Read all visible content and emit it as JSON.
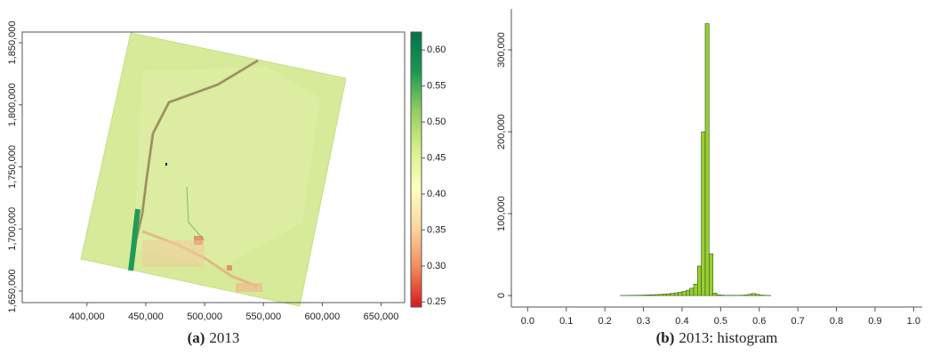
{
  "chart_data": [
    {
      "type": "raster",
      "caption_label": "(a)",
      "caption": "2013",
      "xlim": [
        345000,
        670000
      ],
      "xticks": [
        {
          "value": 400000,
          "label": "400,000"
        },
        {
          "value": 450000,
          "label": "450,000"
        },
        {
          "value": 500000,
          "label": "500,000"
        },
        {
          "value": 550000,
          "label": "550,000"
        },
        {
          "value": 600000,
          "label": "600,000"
        },
        {
          "value": 650000,
          "label": "650,000"
        }
      ],
      "ylim": [
        1640700,
        1858600
      ],
      "yticks": [
        {
          "value": 1650000,
          "label": "1,650,000"
        },
        {
          "value": 1700000,
          "label": "1,700,000"
        },
        {
          "value": 1750000,
          "label": "1,750,000"
        },
        {
          "value": 1800000,
          "label": "1,800,000"
        },
        {
          "value": 1850000,
          "label": "1,850,000"
        }
      ],
      "colorbar_lim": [
        0.243,
        0.625
      ],
      "colorbar_ticks": [
        0.25,
        {
          "value": 0.3,
          "label": "0.30"
        },
        0.35,
        {
          "value": 0.4,
          "label": "0.40"
        },
        0.45,
        {
          "value": 0.5,
          "label": "0.50"
        },
        0.55,
        {
          "value": 0.6,
          "label": "0.60"
        }
      ],
      "colormap": [
        "#d7191c",
        "#f08a5d",
        "#fdd49e",
        "#ffffbf",
        "#d9ef8b",
        "#91cf60",
        "#1a9850",
        "#00734a"
      ]
    },
    {
      "type": "histogram",
      "caption_label": "(b)",
      "caption": "2013: histogram",
      "color": "#9acd32",
      "edgecolor": "#2e5d0e",
      "bins": [
        0.24,
        0.25,
        0.26,
        0.27,
        0.28,
        0.29,
        0.3,
        0.31,
        0.32,
        0.33,
        0.34,
        0.35,
        0.36,
        0.37,
        0.38,
        0.39,
        0.4,
        0.41,
        0.42,
        0.43,
        0.44,
        0.45,
        0.46,
        0.47,
        0.48,
        0.49,
        0.5,
        0.51,
        0.52,
        0.53,
        0.54,
        0.55,
        0.56,
        0.57,
        0.58,
        0.59,
        0.6,
        0.61,
        0.62,
        0.63
      ],
      "counts": [
        200,
        200,
        300,
        300,
        400,
        500,
        600,
        800,
        1000,
        1200,
        1500,
        1800,
        2200,
        2700,
        3300,
        4000,
        5000,
        6500,
        9000,
        14000,
        36000,
        200000,
        332000,
        51000,
        3000,
        1000,
        500,
        300,
        300,
        300,
        300,
        400,
        600,
        1500,
        2500,
        1500,
        600,
        300,
        200
      ],
      "xlim": [
        -0.04,
        1.02
      ],
      "xticks": [
        {
          "value": 0,
          "label": "0.0"
        },
        0.1,
        0.2,
        0.3,
        0.4,
        0.5,
        0.6,
        0.7,
        0.8,
        0.9,
        {
          "value": 1,
          "label": "1.0"
        }
      ],
      "ylim": [
        -14000,
        350000
      ],
      "yticks": [
        0,
        {
          "value": 100000,
          "label": "100,000"
        },
        {
          "value": 200000,
          "label": "200,000"
        },
        {
          "value": 300000,
          "label": "300,000"
        }
      ]
    }
  ]
}
